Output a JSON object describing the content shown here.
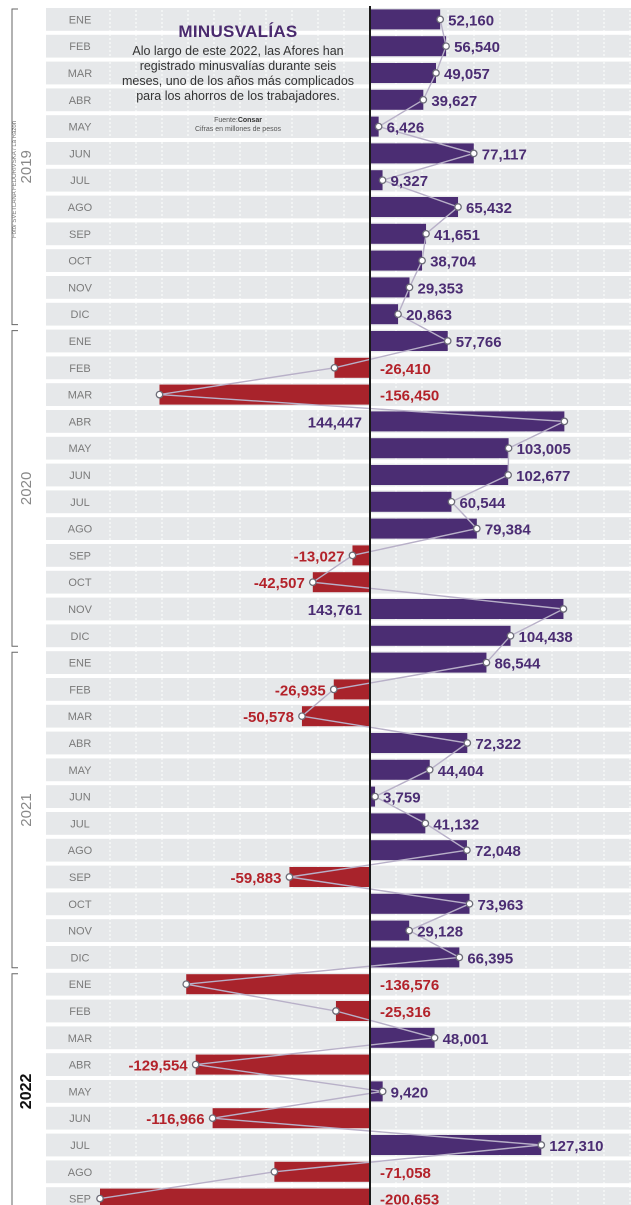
{
  "chart_data": {
    "type": "bar",
    "orientation": "horizontal",
    "title": "MINUSVALÍAS",
    "subtitle": "Alo largo de este 2022, las Afores han registrado minusvalías durante seis meses, uno de los años más complicados para los ahorros de los trabajadores.",
    "source_label": "Fuente:",
    "source_name": "Consar",
    "units_note": "Cifras en millones de pesos",
    "photo_credit": "Foto/ SVETLANA FEDORIVSKA / La Razón",
    "years": [
      {
        "label": "2019",
        "start": 0,
        "count": 12
      },
      {
        "label": "2020",
        "start": 12,
        "count": 12
      },
      {
        "label": "2021",
        "start": 24,
        "count": 12
      },
      {
        "label": "2022",
        "start": 36,
        "count": 9
      }
    ],
    "categories": [
      "ENE",
      "FEB",
      "MAR",
      "ABR",
      "MAY",
      "JUN",
      "JUL",
      "AGO",
      "SEP",
      "OCT",
      "NOV",
      "DIC",
      "ENE",
      "FEB",
      "MAR",
      "ABR",
      "MAY",
      "JUN",
      "JUL",
      "AGO",
      "SEP",
      "OCT",
      "NOV",
      "DIC",
      "ENE",
      "FEB",
      "MAR",
      "ABR",
      "MAY",
      "JUN",
      "JUL",
      "AGO",
      "SEP",
      "OCT",
      "NOV",
      "DIC",
      "ENE",
      "FEB",
      "MAR",
      "ABR",
      "MAY",
      "JUN",
      "JUL",
      "AGO",
      "SEP"
    ],
    "values": [
      52160,
      56540,
      49057,
      39627,
      6426,
      77117,
      9327,
      65432,
      41651,
      38704,
      29353,
      20863,
      57766,
      -26410,
      -156450,
      144447,
      103005,
      102677,
      60544,
      79384,
      -13027,
      -42507,
      143761,
      104438,
      86544,
      -26935,
      -50578,
      72322,
      44404,
      3759,
      41132,
      72048,
      -59883,
      73963,
      29128,
      66395,
      -136576,
      -25316,
      48001,
      -129554,
      9420,
      -116966,
      127310,
      -71058,
      -200653
    ],
    "labels": [
      "52,160",
      "56,540",
      "49,057",
      "39,627",
      "6,426",
      "77,117",
      "9,327",
      "65,432",
      "41,651",
      "38,704",
      "29,353",
      "20,863",
      "57,766",
      "-26,410",
      "-156,450",
      "144,447",
      "103,005",
      "102,677",
      "60,544",
      "79,384",
      "-13,027",
      "-42,507",
      "143,761",
      "104,438",
      "86,544",
      "-26,935",
      "-50,578",
      "72,322",
      "44,404",
      "3,759",
      "41,132",
      "72,048",
      "-59,883",
      "73,963",
      "29,128",
      "66,395",
      "-136,576",
      "-25,316",
      "48,001",
      "-129,554",
      "9,420",
      "-116,966",
      "127,310",
      "-71,058",
      "-200,653"
    ],
    "label_side": [
      "r",
      "r",
      "r",
      "r",
      "r",
      "r",
      "r",
      "r",
      "r",
      "r",
      "r",
      "r",
      "r",
      "r",
      "r",
      "l",
      "r",
      "r",
      "r",
      "r",
      "l",
      "l",
      "l",
      "r",
      "r",
      "l",
      "l",
      "r",
      "r",
      "r",
      "r",
      "r",
      "l",
      "r",
      "r",
      "r",
      "r",
      "r",
      "r",
      "l",
      "r",
      "l",
      "r",
      "r",
      "r"
    ],
    "colors": {
      "positive": "#4b2d73",
      "negative": "#a8232b",
      "positive_label": "#4b2d73",
      "negative_label": "#b3222a",
      "row_band": "#e6e8ea",
      "zero_line": "#1a1a1a",
      "connector": "#b8b0c8"
    }
  }
}
